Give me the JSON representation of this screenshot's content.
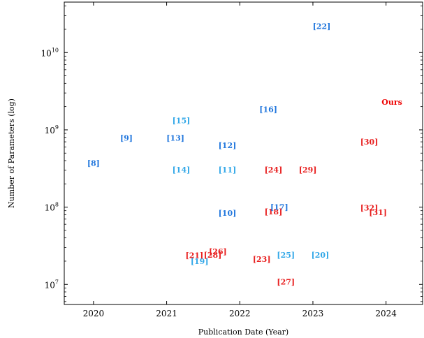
{
  "chart_data": {
    "type": "scatter",
    "xlabel": "Publication Date (Year)",
    "ylabel": "Number of Parameters (log)",
    "x_ticks": [
      2020,
      2021,
      2022,
      2023,
      2024
    ],
    "y_ticks": [
      {
        "value": 10000000,
        "base": "10",
        "exp": "7"
      },
      {
        "value": 100000000,
        "base": "10",
        "exp": "8"
      },
      {
        "value": 1000000000,
        "base": "10",
        "exp": "9"
      },
      {
        "value": 10000000000,
        "base": "10",
        "exp": "10"
      }
    ],
    "xlim": [
      2019.6,
      2024.5
    ],
    "ylim": [
      5500000,
      45000000000
    ],
    "log_y": true,
    "grid": false,
    "colors": {
      "blue": "#2277dd",
      "lightblue": "#33a8e8",
      "red": "#e82020",
      "ours": "#ee0000"
    },
    "points": [
      {
        "label": "[8]",
        "x": 2020.0,
        "y": 370000000,
        "color": "blue"
      },
      {
        "label": "[9]",
        "x": 2020.45,
        "y": 790000000,
        "color": "blue"
      },
      {
        "label": "[13]",
        "x": 2021.12,
        "y": 790000000,
        "color": "blue"
      },
      {
        "label": "[15]",
        "x": 2021.2,
        "y": 1320000000,
        "color": "lightblue"
      },
      {
        "label": "[14]",
        "x": 2021.2,
        "y": 305000000,
        "color": "lightblue"
      },
      {
        "label": "[12]",
        "x": 2021.83,
        "y": 630000000,
        "color": "blue"
      },
      {
        "label": "[11]",
        "x": 2021.83,
        "y": 305000000,
        "color": "lightblue"
      },
      {
        "label": "[10]",
        "x": 2021.83,
        "y": 84000000,
        "color": "blue"
      },
      {
        "label": "[16]",
        "x": 2022.39,
        "y": 1850000000,
        "color": "blue"
      },
      {
        "label": "[22]",
        "x": 2023.12,
        "y": 22000000000,
        "color": "blue"
      },
      {
        "label": "[24]",
        "x": 2022.46,
        "y": 305000000,
        "color": "red"
      },
      {
        "label": "[29]",
        "x": 2022.93,
        "y": 305000000,
        "color": "red"
      },
      {
        "label": "[18]",
        "x": 2022.46,
        "y": 88000000,
        "color": "red"
      },
      {
        "label": "[17]",
        "x": 2022.54,
        "y": 100000000,
        "color": "blue"
      },
      {
        "label": "[30]",
        "x": 2023.77,
        "y": 700000000,
        "color": "red"
      },
      {
        "label": "[32]",
        "x": 2023.77,
        "y": 98000000,
        "color": "red"
      },
      {
        "label": "[31]",
        "x": 2023.89,
        "y": 86000000,
        "color": "red"
      },
      {
        "label": "Ours",
        "x": 2024.08,
        "y": 2300000000,
        "color": "ours"
      },
      {
        "label": "[21]",
        "x": 2021.38,
        "y": 23800000,
        "color": "red"
      },
      {
        "label": "[19]",
        "x": 2021.45,
        "y": 20000000,
        "color": "lightblue"
      },
      {
        "label": "[28]",
        "x": 2021.63,
        "y": 24000000,
        "color": "red"
      },
      {
        "label": "[26]",
        "x": 2021.7,
        "y": 26800000,
        "color": "red"
      },
      {
        "label": "[23]",
        "x": 2022.3,
        "y": 21200000,
        "color": "red"
      },
      {
        "label": "[25]",
        "x": 2022.63,
        "y": 24000000,
        "color": "lightblue"
      },
      {
        "label": "[20]",
        "x": 2023.1,
        "y": 24000000,
        "color": "lightblue"
      },
      {
        "label": "[27]",
        "x": 2022.63,
        "y": 10800000,
        "color": "red"
      }
    ]
  }
}
